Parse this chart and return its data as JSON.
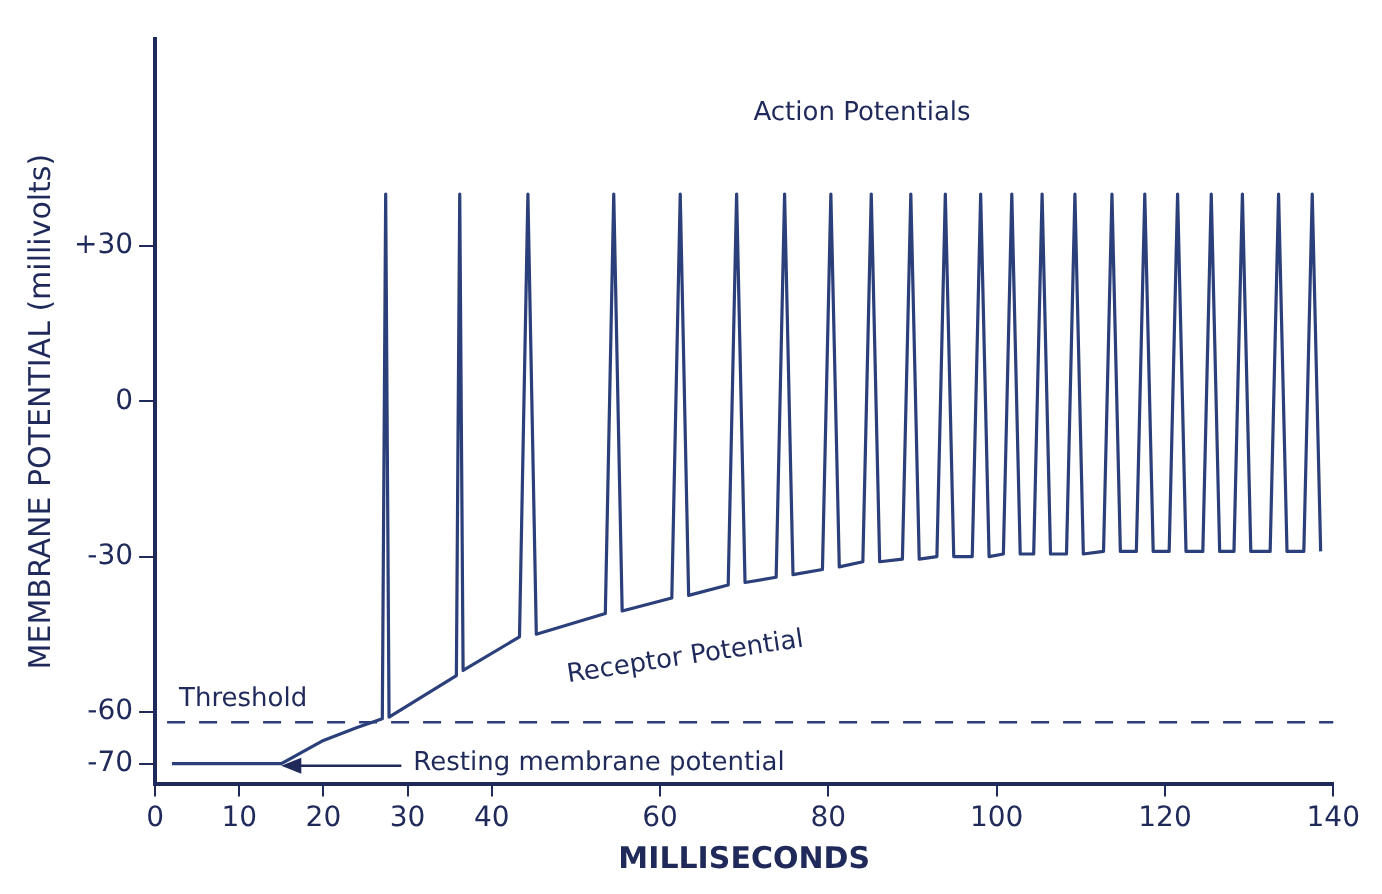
{
  "chart_data": {
    "type": "line",
    "xlabel": "MILLISECONDS",
    "ylabel": "MEMBRANE POTENTIAL (millivolts)",
    "xlim": [
      0,
      140
    ],
    "xticks": [
      0,
      10,
      20,
      30,
      40,
      60,
      80,
      100,
      120,
      140
    ],
    "ylim": [
      -74,
      70
    ],
    "yticks": [
      {
        "value": 30,
        "label": "+30"
      },
      0,
      -30,
      -60,
      -70
    ],
    "grid": false,
    "marker": "none",
    "line_style": "solid",
    "series": [
      {
        "color": "#2b3f7a",
        "x": [
          2,
          15,
          20,
          24,
          27,
          27.4,
          27.8,
          35.8,
          36.2,
          36.6,
          43.3,
          44.3,
          45.3,
          53.5,
          54.5,
          55.5,
          61.4,
          62.4,
          63.4,
          68.1,
          69.1,
          70.1,
          73.8,
          74.8,
          75.8,
          79.3,
          80.3,
          81.3,
          84.1,
          85.1,
          86.1,
          88.8,
          89.8,
          90.8,
          92.9,
          93.9,
          94.9,
          97.1,
          98.1,
          99.1,
          100.8,
          101.8,
          102.8,
          104.4,
          105.4,
          106.4,
          108.3,
          109.3,
          110.3,
          112.7,
          113.7,
          114.7,
          116.6,
          117.6,
          118.6,
          120.5,
          121.5,
          122.5,
          124.5,
          125.5,
          126.5,
          128.2,
          129.2,
          130.2,
          132.5,
          133.5,
          134.5,
          136.5,
          137.5,
          138.5
        ],
        "values": [
          -70,
          -70,
          -65.5,
          -63,
          -61.3,
          40,
          -61,
          -53,
          40,
          -52,
          -45.5,
          40,
          -45,
          -41,
          40,
          -40.5,
          -38,
          40,
          -37.5,
          -35.5,
          40,
          -35,
          -34,
          40,
          -33.5,
          -32.5,
          40,
          -32,
          -31,
          40,
          -31,
          -30.5,
          40,
          -30.5,
          -30,
          40,
          -30,
          -30,
          40,
          -30,
          -29.5,
          40,
          -29.5,
          -29.5,
          40,
          -29.5,
          -29.5,
          40,
          -29.5,
          -29,
          40,
          -29,
          -29,
          40,
          -29,
          -29,
          40,
          -29,
          -29,
          40,
          -29,
          -29,
          40,
          -29,
          -29,
          40,
          -29,
          -29,
          40,
          -29
        ]
      }
    ],
    "ref_lines": [
      {
        "axis": "y",
        "value": -62,
        "label": "Threshold",
        "color": "#2b3f7a",
        "line_style": "dashed"
      }
    ],
    "annotations": [
      "Action Potentials",
      "Receptor Potential",
      {
        "text": "Resting membrane potential",
        "x": 15,
        "y": -70
      }
    ]
  }
}
